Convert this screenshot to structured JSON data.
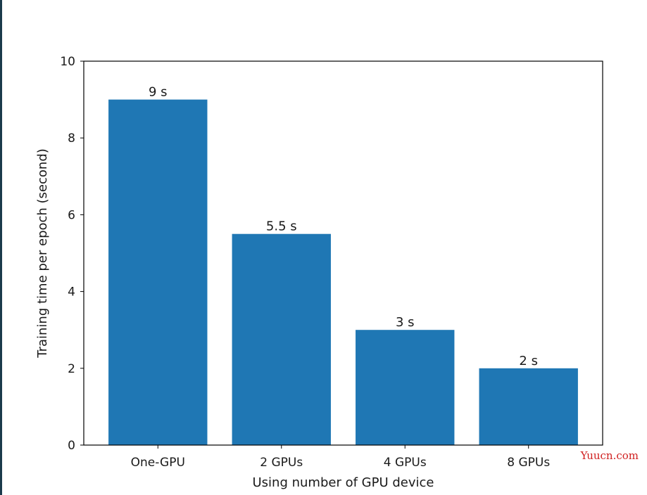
{
  "chart_data": {
    "type": "bar",
    "categories": [
      "One-GPU",
      "2 GPUs",
      "4 GPUs",
      "8 GPUs"
    ],
    "values": [
      9,
      5.5,
      3,
      2
    ],
    "data_labels": [
      "9 s",
      "5.5 s",
      "3 s",
      "2 s"
    ],
    "xlabel": "Using number of GPU device",
    "ylabel": "Training time per epoch (second)",
    "ylim": [
      0,
      10
    ],
    "yticks": [
      0,
      2,
      4,
      6,
      8,
      10
    ],
    "grid": false,
    "bar_color": "#1f77b4"
  },
  "watermark": "Yuucn.com"
}
